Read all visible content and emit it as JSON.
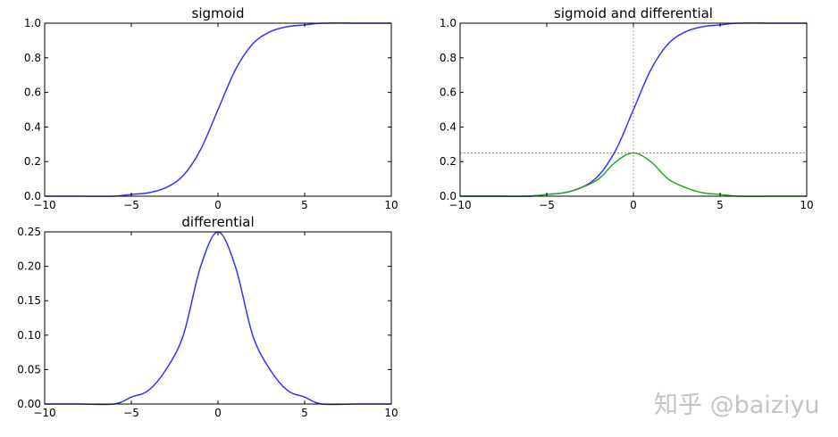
{
  "watermark": "知乎 @baiziyu",
  "chart_data": [
    {
      "type": "line",
      "title": "sigmoid",
      "xlabel": "",
      "ylabel": "",
      "xlim": [
        -10,
        10
      ],
      "ylim": [
        0,
        1.0
      ],
      "x_ticks": [
        -10,
        -5,
        0,
        5,
        10
      ],
      "x_tick_labels": [
        "−10",
        "−5",
        "0",
        "5",
        "10"
      ],
      "y_ticks": [
        0,
        0.2,
        0.4,
        0.6,
        0.8,
        1.0
      ],
      "y_tick_labels": [
        "0.0",
        "0.2",
        "0.4",
        "0.6",
        "0.8",
        "1.0"
      ],
      "grid": false,
      "x": [
        -10,
        -8,
        -6,
        -5,
        -4,
        -3,
        -2,
        -1,
        0,
        1,
        2,
        3,
        4,
        5,
        6,
        8,
        10
      ],
      "series": [
        {
          "color": "#3333ff",
          "values": [
            0.0,
            0.0,
            0.0,
            0.01,
            0.02,
            0.05,
            0.12,
            0.27,
            0.5,
            0.73,
            0.88,
            0.95,
            0.98,
            0.99,
            1.0,
            1.0,
            1.0
          ]
        }
      ]
    },
    {
      "type": "line",
      "title": "sigmoid and differential",
      "xlabel": "",
      "ylabel": "",
      "xlim": [
        -10,
        10
      ],
      "ylim": [
        0,
        1.0
      ],
      "x_ticks": [
        -10,
        -5,
        0,
        5,
        10
      ],
      "x_tick_labels": [
        "−10",
        "−5",
        "0",
        "5",
        "10"
      ],
      "y_ticks": [
        0,
        0.2,
        0.4,
        0.6,
        0.8,
        1.0
      ],
      "y_tick_labels": [
        "0.0",
        "0.2",
        "0.4",
        "0.6",
        "0.8",
        "1.0"
      ],
      "grid": false,
      "reference_lines": {
        "vertical_x": 0,
        "horizontal_y": 0.25,
        "style": "dotted",
        "color": "#999999"
      },
      "x": [
        -10,
        -8,
        -6,
        -5,
        -4,
        -3,
        -2,
        -1,
        0,
        1,
        2,
        3,
        4,
        5,
        6,
        8,
        10
      ],
      "series": [
        {
          "color": "#3333ff",
          "values": [
            0.0,
            0.0,
            0.0,
            0.01,
            0.02,
            0.05,
            0.12,
            0.27,
            0.5,
            0.73,
            0.88,
            0.95,
            0.98,
            0.99,
            1.0,
            1.0,
            1.0
          ]
        },
        {
          "color": "#22aa22",
          "values": [
            0.0,
            0.0,
            0.0,
            0.01,
            0.02,
            0.05,
            0.1,
            0.2,
            0.25,
            0.2,
            0.1,
            0.05,
            0.02,
            0.01,
            0.0,
            0.0,
            0.0
          ]
        }
      ]
    },
    {
      "type": "line",
      "title": "differential",
      "xlabel": "",
      "ylabel": "",
      "xlim": [
        -10,
        10
      ],
      "ylim": [
        0,
        0.25
      ],
      "x_ticks": [
        -10,
        -5,
        0,
        5,
        10
      ],
      "x_tick_labels": [
        "−10",
        "−5",
        "0",
        "5",
        "10"
      ],
      "y_ticks": [
        0,
        0.05,
        0.1,
        0.15,
        0.2,
        0.25
      ],
      "y_tick_labels": [
        "0.00",
        "0.05",
        "0.10",
        "0.15",
        "0.20",
        "0.25"
      ],
      "grid": false,
      "x": [
        -10,
        -8,
        -6,
        -5,
        -4,
        -3,
        -2,
        -1,
        0,
        1,
        2,
        3,
        4,
        5,
        6,
        8,
        10
      ],
      "series": [
        {
          "color": "#3333ff",
          "values": [
            0.0,
            0.0,
            0.0,
            0.01,
            0.02,
            0.05,
            0.1,
            0.2,
            0.25,
            0.2,
            0.1,
            0.05,
            0.02,
            0.01,
            0.0,
            0.0,
            0.0
          ]
        }
      ]
    }
  ]
}
